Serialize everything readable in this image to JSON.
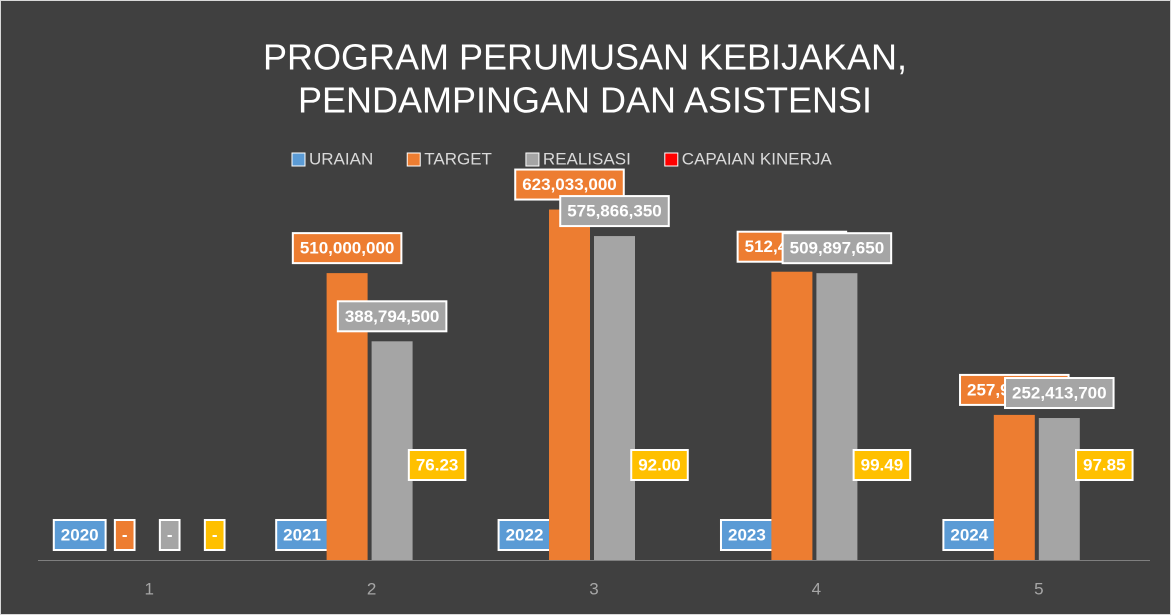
{
  "chart_data": {
    "type": "bar",
    "title": [
      "PROGRAM PERUMUSAN KEBIJAKAN,",
      "PENDAMPINGAN DAN ASISTENSI"
    ],
    "categories": [
      "1",
      "2",
      "3",
      "4",
      "5"
    ],
    "ylim": [
      0,
      640000000
    ],
    "legend": "top",
    "series": [
      {
        "name": "URAIAN",
        "color": "#5B9BD5",
        "values": [
          2020,
          2021,
          2022,
          2023,
          2024
        ],
        "value_labels": [
          "2020",
          "2021",
          "2022",
          "2023",
          "2024"
        ]
      },
      {
        "name": "TARGET",
        "color": "#ED7D31",
        "values": [
          0,
          510000000,
          623033000,
          512495100,
          257950000
        ],
        "value_labels": [
          "-",
          "510,000,000",
          "623,033,000",
          "512,495,100",
          "257,950,000"
        ]
      },
      {
        "name": "REALISASI",
        "color": "#A5A5A5",
        "values": [
          0,
          388794500,
          575866350,
          509897650,
          252413700
        ],
        "value_labels": [
          "-",
          "388,794,500",
          "575,866,350",
          "509,897,650",
          "252,413,700"
        ]
      },
      {
        "name": "CAPAIAN KINERJA",
        "color": "#FF0000",
        "label_color": "#FFC000",
        "values": [
          0,
          76.23,
          92.0,
          99.49,
          97.85
        ],
        "value_labels": [
          "-",
          "76.23",
          "92.00",
          "99.49",
          "97.85"
        ]
      }
    ]
  }
}
